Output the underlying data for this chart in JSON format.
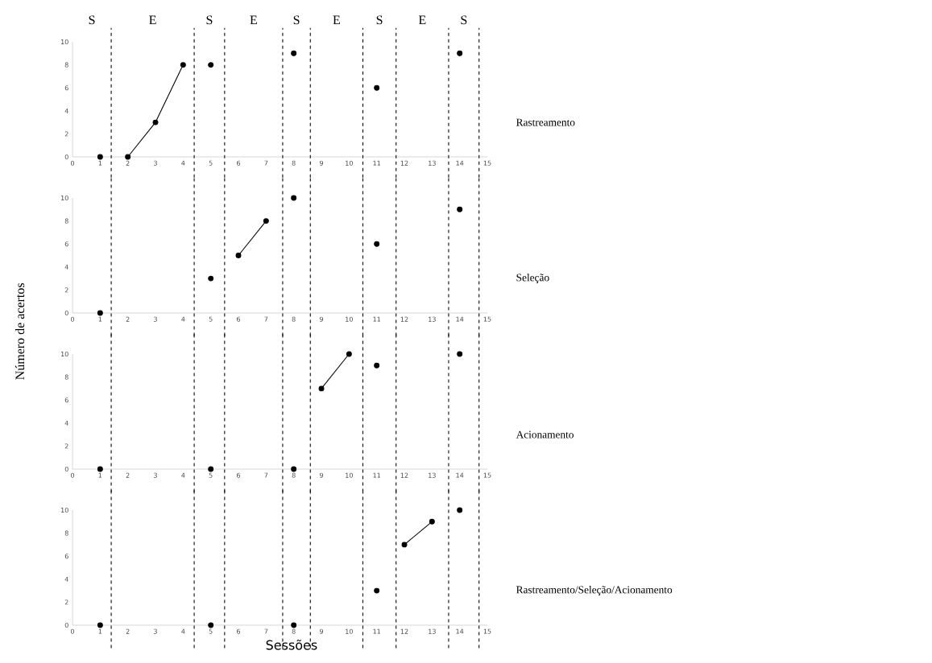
{
  "chart_data": [
    {
      "type": "scatter",
      "y2label": "Rastreamento",
      "marker": "circle",
      "xlim": [
        0,
        15
      ],
      "xticks": [
        0,
        1,
        2,
        3,
        4,
        5,
        6,
        7,
        8,
        9,
        10,
        11,
        12,
        13,
        14,
        15
      ],
      "ylim": [
        0,
        10
      ],
      "yticks": [
        0,
        2,
        4,
        6,
        8,
        10
      ],
      "grid": false,
      "series": [
        {
          "color": "#000000",
          "x": [
            1,
            5,
            8,
            11,
            14
          ],
          "values": [
            0,
            8,
            9,
            6,
            9
          ]
        },
        {
          "type": "line",
          "color": "#000000",
          "line_style": "solid",
          "x": [
            2,
            3,
            4
          ],
          "values": [
            0,
            3,
            8
          ]
        }
      ],
      "ref_lines": [
        {
          "axis": "x",
          "value": 1.4,
          "line_style": "dashed",
          "color": "#000000"
        },
        {
          "axis": "x",
          "value": 4.4,
          "line_style": "dashed",
          "color": "#000000"
        },
        {
          "axis": "x",
          "value": 5.5,
          "line_style": "dashed",
          "color": "#000000"
        },
        {
          "axis": "x",
          "value": 7.6,
          "line_style": "dashed",
          "color": "#000000"
        },
        {
          "axis": "x",
          "value": 8.6,
          "line_style": "dashed",
          "color": "#000000"
        },
        {
          "axis": "x",
          "value": 10.5,
          "line_style": "dashed",
          "color": "#000000"
        },
        {
          "axis": "x",
          "value": 11.7,
          "line_style": "dashed",
          "color": "#000000"
        },
        {
          "axis": "x",
          "value": 13.6,
          "line_style": "dashed",
          "color": "#000000"
        },
        {
          "axis": "x",
          "value": 14.7,
          "line_style": "dashed",
          "color": "#000000"
        }
      ],
      "annotations": [
        "S",
        "E",
        "S",
        "E",
        "S",
        "E",
        "S",
        "E",
        "S"
      ]
    },
    {
      "type": "scatter",
      "y2label": "Seleção",
      "ylabel": "Número de acertos",
      "marker": "circle",
      "xlim": [
        0,
        15
      ],
      "xticks": [
        0,
        1,
        2,
        3,
        4,
        5,
        6,
        7,
        8,
        9,
        10,
        11,
        12,
        13,
        14,
        15
      ],
      "ylim": [
        0,
        10
      ],
      "yticks": [
        0,
        2,
        4,
        6,
        8,
        10
      ],
      "grid": false,
      "series": [
        {
          "color": "#000000",
          "x": [
            1,
            5,
            8,
            11,
            14
          ],
          "values": [
            0,
            3,
            10,
            6,
            9
          ]
        },
        {
          "type": "line",
          "color": "#000000",
          "line_style": "solid",
          "x": [
            6,
            7
          ],
          "values": [
            5,
            8
          ]
        }
      ],
      "ref_lines": [
        {
          "axis": "x",
          "value": 1.4,
          "line_style": "dashed",
          "color": "#000000"
        },
        {
          "axis": "x",
          "value": 4.4,
          "line_style": "dashed",
          "color": "#000000"
        },
        {
          "axis": "x",
          "value": 5.5,
          "line_style": "dashed",
          "color": "#000000"
        },
        {
          "axis": "x",
          "value": 7.6,
          "line_style": "dashed",
          "color": "#000000"
        },
        {
          "axis": "x",
          "value": 8.6,
          "line_style": "dashed",
          "color": "#000000"
        },
        {
          "axis": "x",
          "value": 10.5,
          "line_style": "dashed",
          "color": "#000000"
        },
        {
          "axis": "x",
          "value": 11.7,
          "line_style": "dashed",
          "color": "#000000"
        },
        {
          "axis": "x",
          "value": 13.6,
          "line_style": "dashed",
          "color": "#000000"
        },
        {
          "axis": "x",
          "value": 14.7,
          "line_style": "dashed",
          "color": "#000000"
        }
      ]
    },
    {
      "type": "scatter",
      "y2label": "Acionamento",
      "marker": "circle",
      "xlim": [
        0,
        15
      ],
      "xticks": [
        0,
        1,
        2,
        3,
        4,
        5,
        6,
        7,
        8,
        9,
        10,
        11,
        12,
        13,
        14,
        15
      ],
      "ylim": [
        0,
        10
      ],
      "yticks": [
        0,
        2,
        4,
        6,
        8,
        10
      ],
      "grid": false,
      "series": [
        {
          "color": "#000000",
          "x": [
            1,
            5,
            8,
            11,
            14
          ],
          "values": [
            0,
            0,
            0,
            9,
            10
          ]
        },
        {
          "type": "line",
          "color": "#000000",
          "line_style": "solid",
          "x": [
            9,
            10
          ],
          "values": [
            7,
            10
          ]
        }
      ],
      "ref_lines": [
        {
          "axis": "x",
          "value": 1.4,
          "line_style": "dashed",
          "color": "#000000"
        },
        {
          "axis": "x",
          "value": 4.4,
          "line_style": "dashed",
          "color": "#000000"
        },
        {
          "axis": "x",
          "value": 5.5,
          "line_style": "dashed",
          "color": "#000000"
        },
        {
          "axis": "x",
          "value": 7.6,
          "line_style": "dashed",
          "color": "#000000"
        },
        {
          "axis": "x",
          "value": 8.6,
          "line_style": "dashed",
          "color": "#000000"
        },
        {
          "axis": "x",
          "value": 10.5,
          "line_style": "dashed",
          "color": "#000000"
        },
        {
          "axis": "x",
          "value": 11.7,
          "line_style": "dashed",
          "color": "#000000"
        },
        {
          "axis": "x",
          "value": 13.6,
          "line_style": "dashed",
          "color": "#000000"
        },
        {
          "axis": "x",
          "value": 14.7,
          "line_style": "dashed",
          "color": "#000000"
        }
      ]
    },
    {
      "type": "scatter",
      "y2label": "Rastreamento/Seleção/Acionamento",
      "xlabel": "Sessões",
      "marker": "circle",
      "xlim": [
        0,
        15
      ],
      "xticks": [
        0,
        1,
        2,
        3,
        4,
        5,
        6,
        7,
        8,
        9,
        10,
        11,
        12,
        13,
        14,
        15
      ],
      "ylim": [
        0,
        10
      ],
      "yticks": [
        0,
        2,
        4,
        6,
        8,
        10
      ],
      "grid": false,
      "series": [
        {
          "color": "#000000",
          "x": [
            1,
            5,
            8,
            11,
            14
          ],
          "values": [
            0,
            0,
            0,
            3,
            10
          ]
        },
        {
          "type": "line",
          "color": "#000000",
          "line_style": "solid",
          "x": [
            12,
            13
          ],
          "values": [
            7,
            9
          ]
        }
      ],
      "ref_lines": [
        {
          "axis": "x",
          "value": 1.4,
          "line_style": "dashed",
          "color": "#000000"
        },
        {
          "axis": "x",
          "value": 4.4,
          "line_style": "dashed",
          "color": "#000000"
        },
        {
          "axis": "x",
          "value": 5.5,
          "line_style": "dashed",
          "color": "#000000"
        },
        {
          "axis": "x",
          "value": 7.6,
          "line_style": "dashed",
          "color": "#000000"
        },
        {
          "axis": "x",
          "value": 8.6,
          "line_style": "dashed",
          "color": "#000000"
        },
        {
          "axis": "x",
          "value": 10.5,
          "line_style": "dashed",
          "color": "#000000"
        },
        {
          "axis": "x",
          "value": 11.7,
          "line_style": "dashed",
          "color": "#000000"
        },
        {
          "axis": "x",
          "value": 13.6,
          "line_style": "dashed",
          "color": "#000000"
        },
        {
          "axis": "x",
          "value": 14.7,
          "line_style": "dashed",
          "color": "#000000"
        }
      ]
    }
  ]
}
